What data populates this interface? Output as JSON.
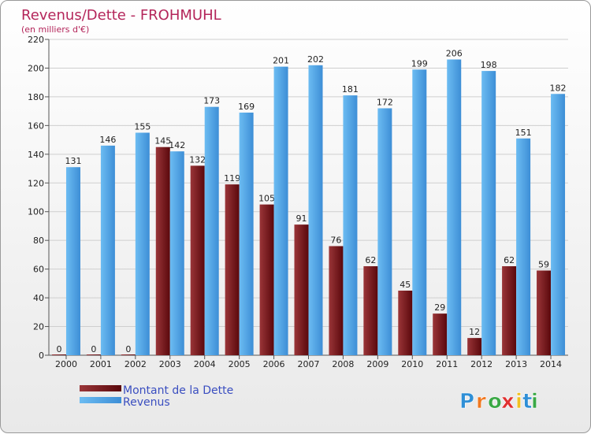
{
  "chart_data": {
    "type": "bar",
    "title": "Revenus/Dette - FROHMUHL",
    "subtitle": "(en milliers d'€)",
    "categories": [
      "2000",
      "2001",
      "2002",
      "2003",
      "2004",
      "2005",
      "2006",
      "2007",
      "2008",
      "2009",
      "2010",
      "2011",
      "2012",
      "2013",
      "2014"
    ],
    "series": [
      {
        "name": "Montant de la Dette",
        "values": [
          0,
          0,
          0,
          145,
          132,
          119,
          105,
          91,
          76,
          62,
          45,
          29,
          12,
          62,
          59
        ]
      },
      {
        "name": "Revenus",
        "values": [
          131,
          146,
          155,
          142,
          173,
          169,
          201,
          202,
          181,
          172,
          199,
          206,
          198,
          151,
          182
        ]
      }
    ],
    "ylim": [
      0,
      220
    ],
    "yticks": [
      0,
      20,
      40,
      60,
      80,
      100,
      120,
      140,
      160,
      180,
      200,
      220
    ],
    "grid": true,
    "legend_position": "bottom-left"
  },
  "colors": {
    "dette": "#6e0e12",
    "dette_light": "#9a3538",
    "revenus": "#4a9be0",
    "revenus_light": "#64b4ee",
    "title": "#b4255a"
  },
  "logo": {
    "name": "proxiti-logo",
    "letters": [
      "P",
      "r",
      "o",
      "x",
      "i",
      "t",
      "i"
    ],
    "letter_colors": [
      "#2f8fd6",
      "#f07820",
      "#3aa845",
      "#e03030",
      "#f0c020",
      "#2f8fd6",
      "#3aa845"
    ]
  }
}
